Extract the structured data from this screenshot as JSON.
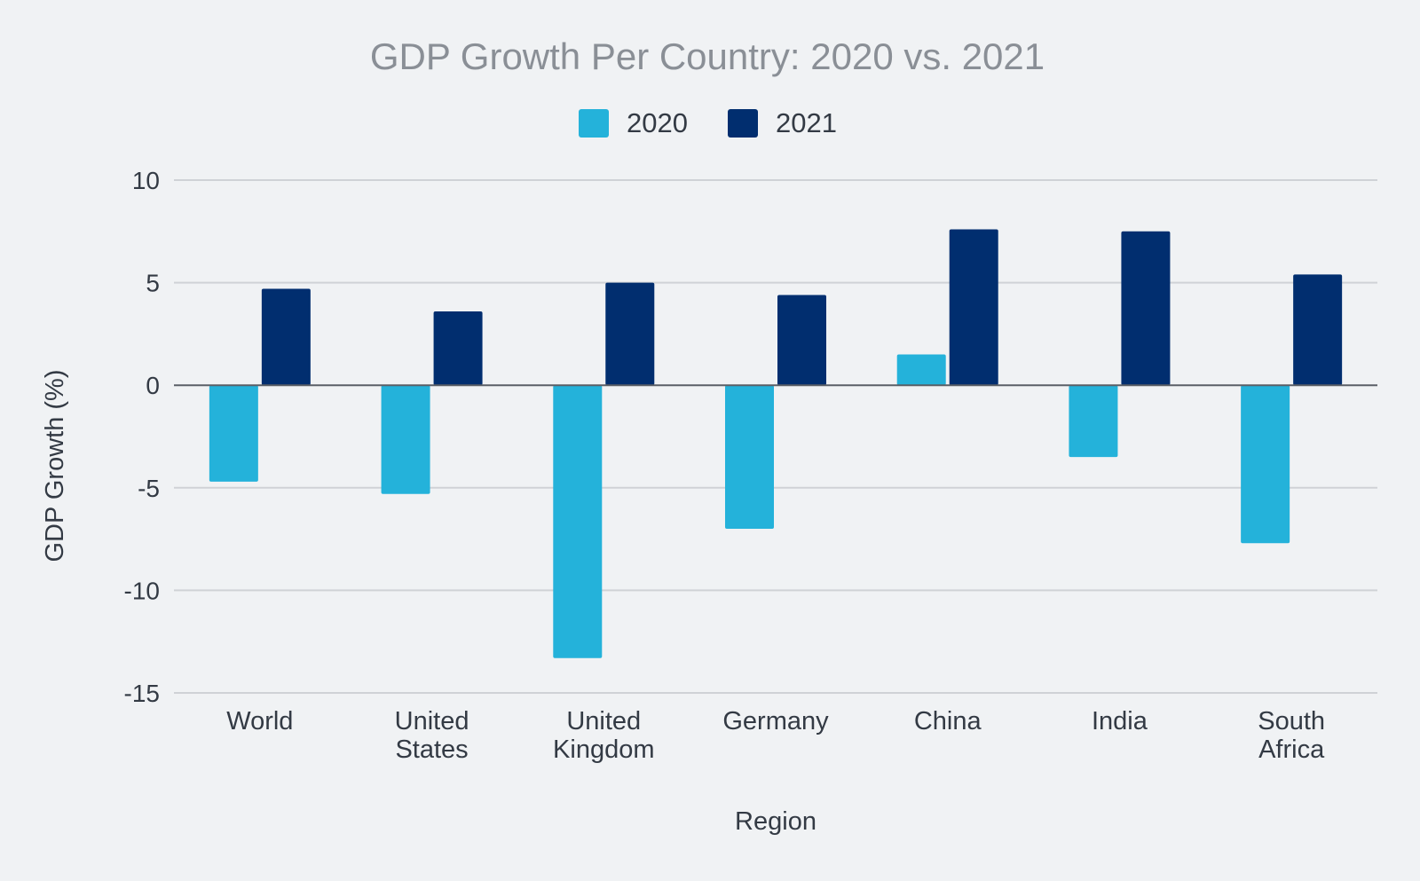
{
  "colors": {
    "background": "#f0f2f4",
    "series_2020": "#24b2da",
    "series_2021": "#012e6f",
    "title": "#8a8f96",
    "axis_text": "#333a44",
    "grid": "#cfd2d6",
    "zero_line": "#5a5f66"
  },
  "chart_data": {
    "type": "bar",
    "title": "GDP Growth Per Country: 2020 vs. 2021",
    "xlabel": "Region",
    "ylabel": "GDP Growth (%)",
    "ylim": [
      -15,
      10
    ],
    "yticks": [
      10,
      5,
      0,
      -5,
      -10,
      -15
    ],
    "grid": true,
    "legend_position": "top-center",
    "categories": [
      [
        "World"
      ],
      [
        "United",
        "States"
      ],
      [
        "United",
        "Kingdom"
      ],
      [
        "Germany"
      ],
      [
        "China"
      ],
      [
        "India"
      ],
      [
        "South",
        "Africa"
      ]
    ],
    "series": [
      {
        "name": "2020",
        "color": "#24b2da",
        "values": [
          -4.7,
          -5.3,
          -13.3,
          -7.0,
          1.5,
          -3.5,
          -7.7
        ]
      },
      {
        "name": "2021",
        "color": "#012e6f",
        "values": [
          4.7,
          3.6,
          5.0,
          4.4,
          7.6,
          7.5,
          5.4
        ]
      }
    ]
  }
}
